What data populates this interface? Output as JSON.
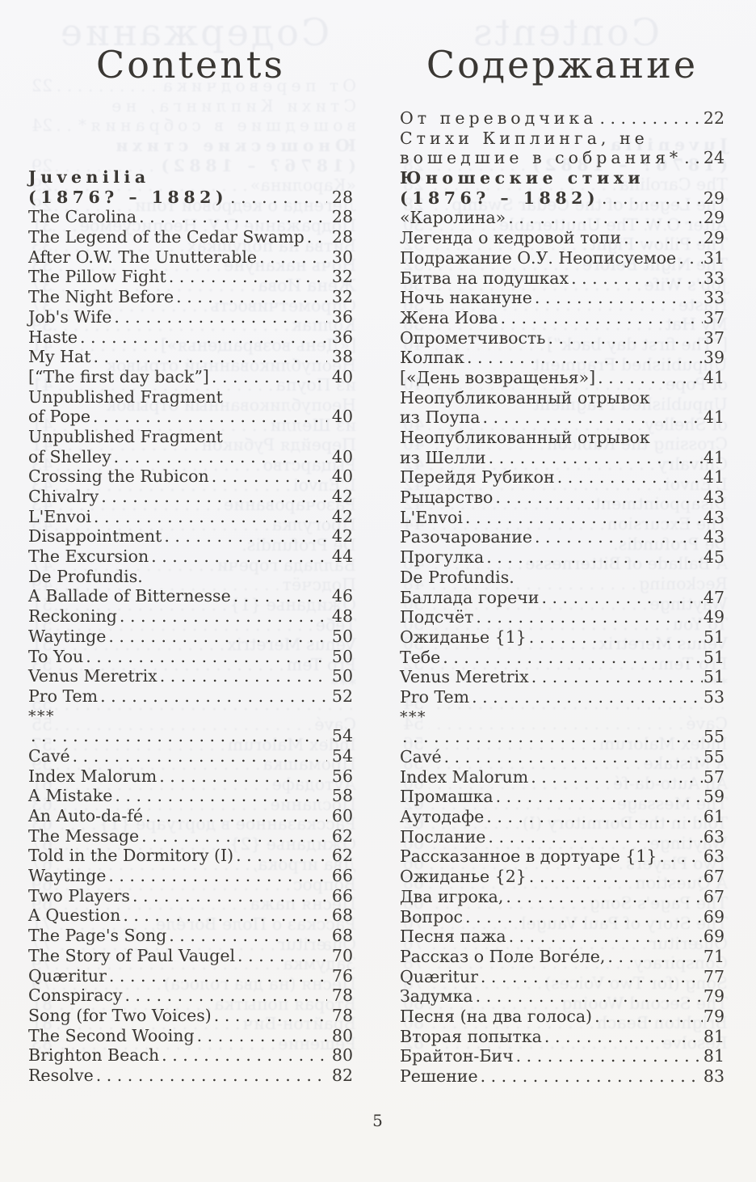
{
  "page_number": "5",
  "colors": {
    "paper": "#f6f6f8",
    "ink": "#3a3733"
  },
  "english": {
    "title": "Contents",
    "items": [
      {
        "text": "Juvenilia",
        "style": "heading"
      },
      {
        "text": "(1876? – 1882)",
        "style": "heading",
        "page": "28"
      },
      {
        "text": "The Carolina",
        "page": "28"
      },
      {
        "text": "The Legend of the Cedar Swamp",
        "page": "28"
      },
      {
        "text": "After O.W. The Unutterable",
        "page": "30"
      },
      {
        "text": "The Pillow Fight",
        "page": "32"
      },
      {
        "text": "The Night Before",
        "page": "32"
      },
      {
        "text": "Job's Wife",
        "page": "36"
      },
      {
        "text": "Haste",
        "page": "36"
      },
      {
        "text": "My Hat",
        "page": "38"
      },
      {
        "text": "[“The first day back”]",
        "page": "40"
      },
      {
        "text": "Unpublished Fragment"
      },
      {
        "text": "of Pope",
        "page": "40"
      },
      {
        "text": "Unpublished Fragment"
      },
      {
        "text": "of Shelley",
        "page": "40"
      },
      {
        "text": "Crossing the Rubicon",
        "page": "40"
      },
      {
        "text": "Chivalry",
        "page": "42"
      },
      {
        "text": "L'Envoi",
        "page": "42"
      },
      {
        "text": "Disappointment",
        "page": "42"
      },
      {
        "text": "The Excursion",
        "page": "44"
      },
      {
        "text": "De Profundis."
      },
      {
        "text": "A Ballade of Bitternesse",
        "page": "46"
      },
      {
        "text": "Reckoning",
        "page": "48"
      },
      {
        "text": "Waytinge",
        "page": "50"
      },
      {
        "text": "To You",
        "page": "50"
      },
      {
        "text": "Venus Meretrix",
        "page": "50"
      },
      {
        "text": "Pro Tem",
        "page": "52"
      },
      {
        "text": "***",
        "style": "stars"
      },
      {
        "text": "",
        "page": "54"
      },
      {
        "text": "Cavé",
        "page": "54"
      },
      {
        "text": "Index Malorum",
        "page": "56"
      },
      {
        "text": "A Mistake",
        "page": "58"
      },
      {
        "text": "An Auto-da-fé",
        "page": "60"
      },
      {
        "text": "The Message",
        "page": "62"
      },
      {
        "text": "Told in the Dormitory (I)",
        "page": "62"
      },
      {
        "text": "Waytinge",
        "page": "66"
      },
      {
        "text": "Two Players",
        "page": "66"
      },
      {
        "text": "A Question",
        "page": "68"
      },
      {
        "text": "The Page's Song",
        "page": "68"
      },
      {
        "text": "The Story of Paul Vaugel",
        "page": "70"
      },
      {
        "text": "Quæritur",
        "page": "76"
      },
      {
        "text": "Conspiracy",
        "page": "78"
      },
      {
        "text": "Song (for Two Voices)",
        "page": "78"
      },
      {
        "text": "The Second Wooing",
        "page": "80"
      },
      {
        "text": "Brighton Beach",
        "page": "80"
      },
      {
        "text": "Resolve",
        "page": "82"
      }
    ]
  },
  "russian": {
    "title": "Содержание",
    "items": [
      {
        "text": "От переводчика",
        "style": "spaced",
        "page": "22"
      },
      {
        "text": "Стихи Киплинга, не",
        "style": "spaced"
      },
      {
        "text": "вошедшие в собрания*",
        "style": "spaced",
        "page": "24"
      },
      {
        "text": "Юношеские стихи",
        "style": "heading"
      },
      {
        "text": "(1876? – 1882)",
        "style": "heading",
        "page": "29"
      },
      {
        "text": "«Каролина»",
        "page": "29"
      },
      {
        "text": "Легенда о кедровой топи",
        "page": "29"
      },
      {
        "text": "Подражание О.У. Неописуемое",
        "page": "31"
      },
      {
        "text": "Битва на подушках",
        "page": "33"
      },
      {
        "text": "Ночь накануне",
        "page": "33"
      },
      {
        "text": "Жена Иова",
        "page": "37"
      },
      {
        "text": "Опрометчивость",
        "page": "37"
      },
      {
        "text": "Колпак",
        "page": "39"
      },
      {
        "text": "[«День возвращенья»]",
        "page": "41"
      },
      {
        "text": "Неопубликованный отрывок"
      },
      {
        "text": "из Поупа",
        "page": "41"
      },
      {
        "text": "Неопубликованный отрывок"
      },
      {
        "text": "из Шелли",
        "page": "41"
      },
      {
        "text": "Перейдя Рубикон",
        "page": "41"
      },
      {
        "text": "Рыцарство",
        "page": "43"
      },
      {
        "text": "L'Envoi",
        "page": "43"
      },
      {
        "text": "Разочарование",
        "page": "43"
      },
      {
        "text": "Прогулка",
        "page": "45"
      },
      {
        "text": "De Profundis."
      },
      {
        "text": "Баллада горечи",
        "page": "47"
      },
      {
        "text": "Подсчёт",
        "page": "49"
      },
      {
        "text": "Ожиданье {1}",
        "page": "51"
      },
      {
        "text": "Тебе",
        "page": "51"
      },
      {
        "text": "Venus Meretrix",
        "page": "51"
      },
      {
        "text": "Pro Tem",
        "page": "53"
      },
      {
        "text": "***",
        "style": "stars"
      },
      {
        "text": "",
        "page": "55"
      },
      {
        "text": "Cavé",
        "page": "55"
      },
      {
        "text": "Index Malorum",
        "page": "57"
      },
      {
        "text": "Промашка",
        "page": "59"
      },
      {
        "text": "Аутодафе",
        "page": "61"
      },
      {
        "text": "Послание",
        "page": "63"
      },
      {
        "text": "Рассказанное в дортуаре {1}",
        "page": "63"
      },
      {
        "text": "Ожиданье {2}",
        "page": "67"
      },
      {
        "text": "Два игрока,",
        "page": "67"
      },
      {
        "text": "Вопрос",
        "page": "69"
      },
      {
        "text": "Песня пажа",
        "page": "69"
      },
      {
        "text": "Рассказ о Поле Воге́ле,",
        "page": "71"
      },
      {
        "text": "Quæritur",
        "page": "77"
      },
      {
        "text": "Задумка",
        "page": "79"
      },
      {
        "text": "Песня (на два голоса)",
        "page": "79"
      },
      {
        "text": "Вторая попытка",
        "page": "81"
      },
      {
        "text": "Брайтон-Бич",
        "page": "81"
      },
      {
        "text": "Решение",
        "page": "83"
      }
    ]
  }
}
